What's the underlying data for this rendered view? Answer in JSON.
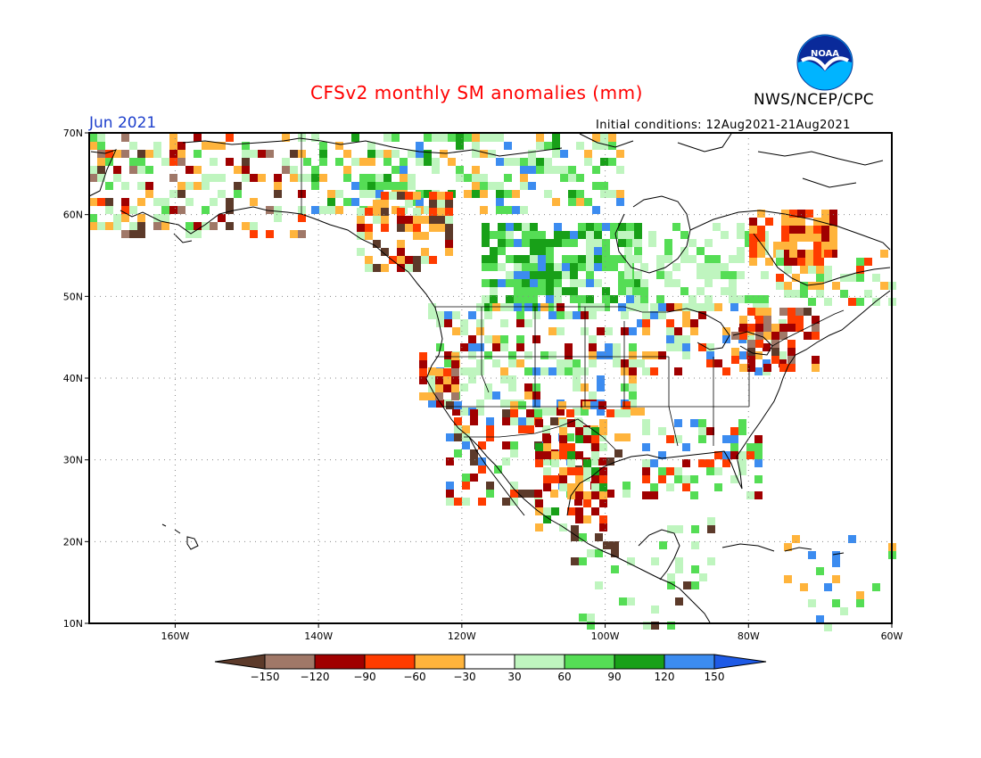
{
  "title": "CFSv2 monthly SM anomalies (mm)",
  "agency": "NWS/NCEP/CPC",
  "logo_text": "NOAA",
  "valid_month": "Jun 2021",
  "initial_conditions": "Initial conditions: 12Aug2021-21Aug2021",
  "lat_labels": [
    "70N",
    "60N",
    "50N",
    "40N",
    "30N",
    "20N",
    "10N"
  ],
  "lon_labels": [
    "160W",
    "140W",
    "120W",
    "100W",
    "80W",
    "60W"
  ],
  "colorbar": {
    "labels": [
      "-150",
      "-120",
      "-90",
      "-60",
      "-30",
      "30",
      "60",
      "90",
      "120",
      "150"
    ],
    "colors": [
      "#5c3a2a",
      "#a07868",
      "#a00000",
      "#ff3c00",
      "#ffb43c",
      "#ffffff",
      "#bff5bf",
      "#55dd55",
      "#18a018",
      "#3c8cf0",
      "#1e5ae6"
    ]
  },
  "colors": {
    "title": "#ff0000",
    "month": "#1d3fcc",
    "frame": "#000000",
    "grid": "#888888"
  }
}
